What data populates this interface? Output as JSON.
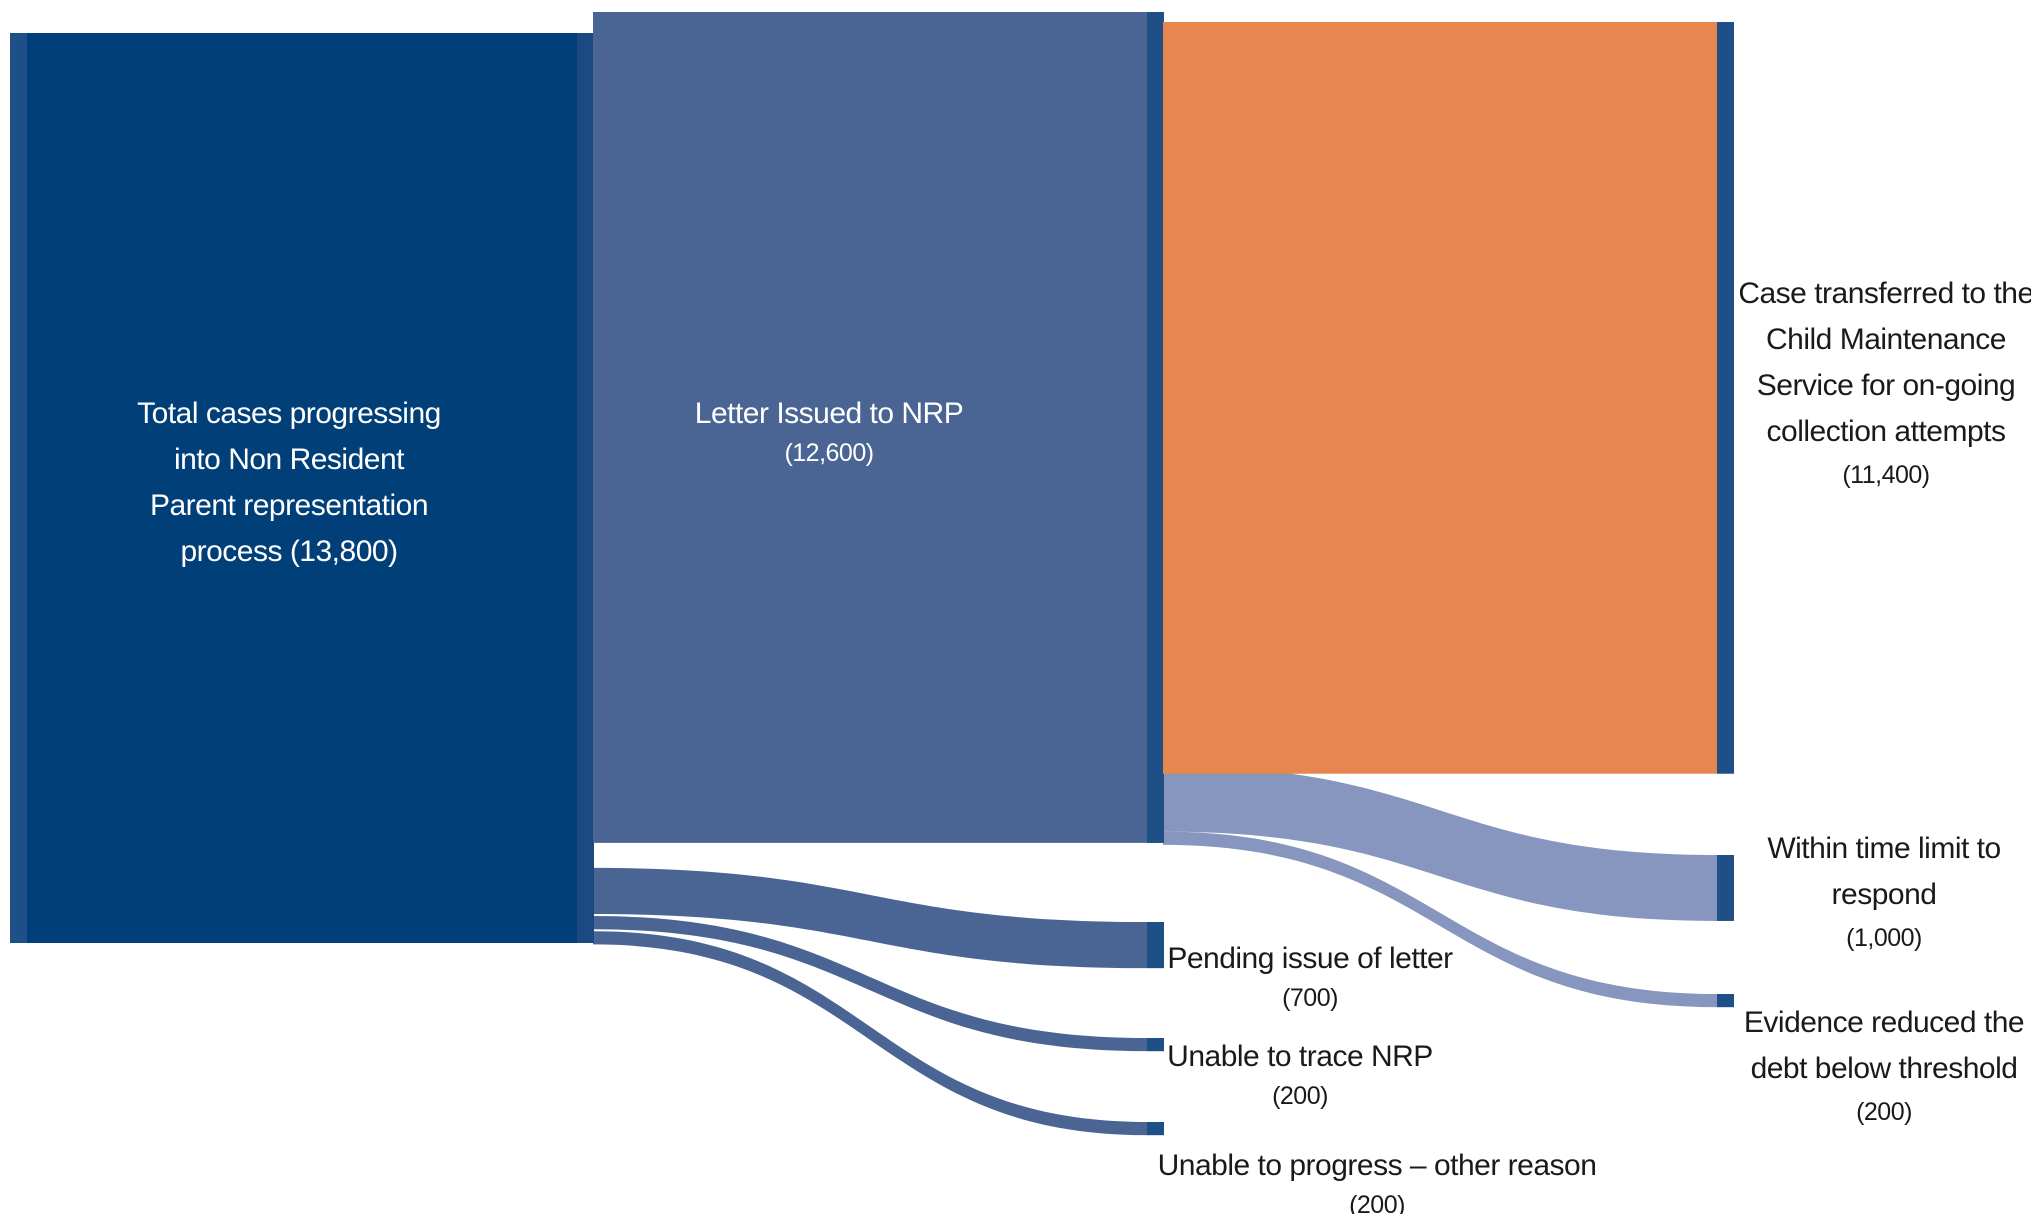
{
  "colors": {
    "total": "#003F78",
    "issued": "#4A6593",
    "transferred": "#E88650",
    "within_time": "#8796BE",
    "evidence": "#8796BE",
    "node_bar": "#1E4F86",
    "flow_from_total": "#4A6593",
    "flow_from_issued": "#8796BE"
  },
  "nodes": {
    "total": {
      "lines": [
        "Total cases progressing",
        "into Non Resident",
        "Parent representation",
        "process (13,800)"
      ],
      "value": 13800
    },
    "issued": {
      "lines": [
        "Letter Issued to NRP"
      ],
      "value_label": "(12,600)",
      "value": 12600
    },
    "transferred": {
      "lines": [
        "Case transferred to the",
        "Child Maintenance",
        "Service for on-going",
        "collection attempts"
      ],
      "value_label": "(11,400)",
      "value": 11400
    },
    "within_time": {
      "lines": [
        "Within time limit to",
        "respond"
      ],
      "value_label": "(1,000)",
      "value": 1000
    },
    "evidence": {
      "lines": [
        "Evidence reduced the",
        "debt below threshold"
      ],
      "value_label": "(200)",
      "value": 200
    },
    "pending": {
      "lines": [
        "Pending issue of letter"
      ],
      "value_label": "(700)",
      "value": 700
    },
    "untraceable": {
      "lines": [
        "Unable to trace NRP"
      ],
      "value_label": "(200)",
      "value": 200
    },
    "other": {
      "lines": [
        "Unable to progress – other reason"
      ],
      "value_label": "(200)",
      "value": 200
    }
  },
  "links": [
    {
      "source": "total",
      "target": "issued",
      "value": 12600
    },
    {
      "source": "total",
      "target": "pending",
      "value": 700
    },
    {
      "source": "total",
      "target": "untraceable",
      "value": 200
    },
    {
      "source": "total",
      "target": "other",
      "value": 200
    },
    {
      "source": "issued",
      "target": "transferred",
      "value": 11400
    },
    {
      "source": "issued",
      "target": "within_time",
      "value": 1000
    },
    {
      "source": "issued",
      "target": "evidence",
      "value": 200
    }
  ]
}
